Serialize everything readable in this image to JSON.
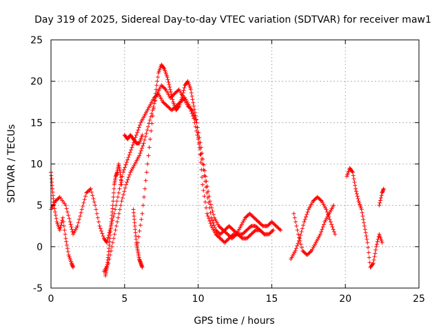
{
  "chart_data": {
    "type": "scatter",
    "title": "Day 319 of 2025, Sidereal Day-to-day VTEC variation (SDTVAR) for receiver maw1",
    "xlabel": "GPS time / hours",
    "ylabel": "SDTVAR / TECUs",
    "xlim": [
      0,
      25
    ],
    "ylim": [
      -5,
      25
    ],
    "xticks": [
      0,
      5,
      10,
      15,
      20,
      25
    ],
    "yticks": [
      -5,
      0,
      5,
      10,
      15,
      20,
      25
    ],
    "grid": true,
    "marker": "+",
    "color": "#ff0000",
    "series": [
      {
        "name": "track-1",
        "x": [
          0.0,
          0.3,
          0.6,
          1.0,
          1.3,
          1.5,
          1.8,
          2.1,
          2.4,
          2.7,
          3.0,
          3.3,
          3.6,
          3.8,
          4.0,
          4.3,
          4.6,
          4.9,
          5.2,
          5.5,
          5.8,
          6.1,
          6.4,
          6.7,
          7.0,
          7.3,
          7.6,
          7.9,
          8.2,
          8.5,
          8.8,
          9.1,
          9.4,
          9.7,
          10.0,
          10.3,
          10.6,
          10.9,
          11.2,
          11.5,
          11.8,
          12.1,
          12.4,
          12.7,
          13.0,
          13.3,
          13.6,
          13.9,
          14.2,
          14.5,
          14.8,
          15.1
        ],
        "y": [
          4.5,
          5.5,
          6.0,
          5.0,
          3.0,
          1.5,
          2.5,
          4.5,
          6.5,
          7.0,
          5.0,
          2.5,
          1.0,
          0.5,
          2.0,
          4.0,
          6.5,
          9.0,
          10.5,
          12.0,
          13.5,
          15.0,
          16.0,
          17.0,
          18.0,
          18.5,
          17.5,
          17.0,
          16.5,
          17.0,
          17.5,
          18.0,
          17.0,
          15.5,
          13.0,
          10.0,
          6.5,
          3.5,
          2.0,
          1.5,
          2.0,
          2.5,
          2.0,
          1.5,
          1.5,
          2.0,
          2.5,
          2.5,
          2.0,
          1.5,
          1.5,
          2.0
        ]
      },
      {
        "name": "track-2",
        "x": [
          3.6,
          3.9,
          4.2,
          4.5,
          4.8,
          5.1,
          5.4,
          5.7,
          6.0,
          6.3,
          6.6,
          6.9,
          7.2,
          7.5,
          7.8,
          8.1,
          8.4,
          8.7,
          9.0,
          9.3,
          9.6,
          9.9,
          10.2,
          10.5,
          10.8,
          11.1,
          11.4,
          11.7,
          12.0,
          12.3,
          12.6,
          12.9,
          13.2,
          13.5,
          13.8,
          14.1,
          14.4,
          14.7,
          15.0,
          15.3,
          15.6
        ],
        "y": [
          -3.0,
          -2.0,
          0.5,
          3.0,
          5.5,
          7.5,
          9.0,
          10.0,
          11.0,
          12.5,
          14.5,
          16.5,
          18.5,
          19.5,
          19.0,
          18.0,
          18.5,
          19.0,
          18.0,
          17.0,
          16.5,
          15.0,
          12.0,
          8.5,
          5.5,
          3.5,
          2.5,
          2.0,
          1.5,
          1.0,
          1.5,
          2.5,
          3.5,
          4.0,
          3.5,
          3.0,
          2.5,
          2.5,
          3.0,
          2.5,
          2.0
        ]
      },
      {
        "name": "track-3",
        "x": [
          5.9,
          6.2,
          6.5,
          6.8,
          7.1,
          7.3,
          7.5,
          7.7,
          7.9,
          8.1,
          8.3,
          8.5,
          8.7,
          8.9,
          9.1,
          9.3,
          9.5,
          9.7,
          9.9,
          10.1,
          10.3,
          10.6,
          10.9,
          11.2,
          11.5,
          11.8,
          12.1,
          12.4,
          12.7,
          13.0,
          13.3,
          13.6,
          13.9,
          14.2,
          14.5
        ],
        "y": [
          0.5,
          4.0,
          9.0,
          14.0,
          18.5,
          21.0,
          22.0,
          21.5,
          20.5,
          19.0,
          17.5,
          16.5,
          17.0,
          18.0,
          19.5,
          20.0,
          19.0,
          17.0,
          15.0,
          12.0,
          7.5,
          4.0,
          2.5,
          1.5,
          1.0,
          0.5,
          1.0,
          1.5,
          1.5,
          1.0,
          1.0,
          1.5,
          2.0,
          2.0,
          1.5
        ]
      },
      {
        "name": "track-4",
        "x": [
          5.0,
          5.2,
          5.4,
          5.6,
          5.8,
          6.0,
          6.2
        ],
        "y": [
          13.5,
          13.0,
          13.5,
          13.0,
          12.5,
          12.5,
          13.5
        ]
      },
      {
        "name": "track-5",
        "x": [
          16.3,
          16.6,
          16.9,
          17.2,
          17.5,
          17.8,
          18.1,
          18.4,
          18.7,
          19.0,
          19.3
        ],
        "y": [
          -1.5,
          -0.5,
          1.0,
          3.0,
          4.5,
          5.5,
          6.0,
          5.5,
          4.5,
          3.0,
          1.5
        ]
      },
      {
        "name": "track-6",
        "x": [
          16.5,
          16.8,
          17.1,
          17.4,
          17.7,
          18.0,
          18.3,
          18.6,
          18.9,
          19.2
        ],
        "y": [
          4.0,
          1.5,
          -0.5,
          -1.0,
          -0.5,
          0.5,
          1.5,
          3.0,
          4.0,
          5.0
        ]
      },
      {
        "name": "track-7",
        "x": [
          20.1,
          20.3,
          20.5,
          20.7,
          20.9,
          21.1,
          21.3,
          21.5,
          21.7,
          21.9,
          22.1,
          22.3,
          22.5
        ],
        "y": [
          8.5,
          9.5,
          9.0,
          7.0,
          5.5,
          4.5,
          2.5,
          0.5,
          -2.5,
          -2.0,
          0.0,
          1.5,
          0.5
        ]
      },
      {
        "name": "track-8",
        "x": [
          22.3,
          22.5,
          22.6
        ],
        "y": [
          5.0,
          6.5,
          7.0
        ]
      },
      {
        "name": "track-9",
        "x": [
          0.0,
          0.1,
          0.2,
          0.4,
          0.6,
          0.8,
          1.0,
          1.2,
          1.4,
          1.5
        ],
        "y": [
          9.0,
          7.0,
          5.0,
          3.0,
          2.0,
          3.5,
          1.0,
          -1.0,
          -2.0,
          -2.5
        ]
      },
      {
        "name": "track-10",
        "x": [
          3.7,
          3.8,
          3.9,
          4.0,
          4.1,
          4.2,
          4.3,
          4.4,
          4.5,
          4.6,
          4.7,
          4.8
        ],
        "y": [
          -3.5,
          -2.5,
          -1.0,
          1.0,
          3.0,
          5.0,
          7.5,
          8.5,
          9.0,
          10.0,
          9.0,
          7.5
        ]
      },
      {
        "name": "track-11",
        "x": [
          5.6,
          5.7,
          5.8,
          5.9,
          6.0,
          6.1,
          6.2
        ],
        "y": [
          4.5,
          2.5,
          0.5,
          -0.5,
          -1.5,
          -2.0,
          -2.5
        ]
      }
    ]
  }
}
